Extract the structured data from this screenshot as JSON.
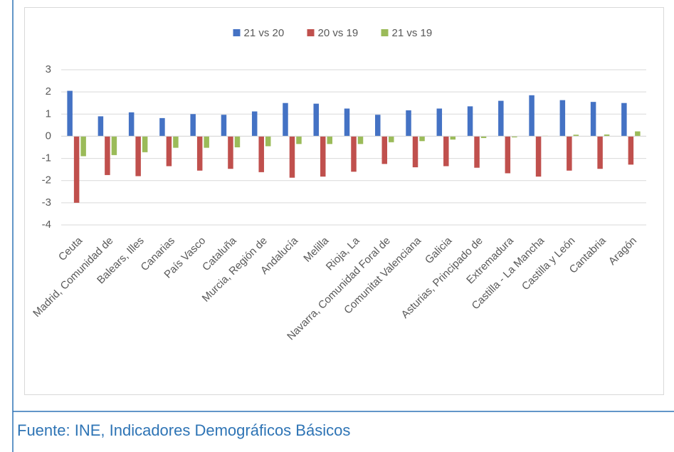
{
  "chart_data": {
    "type": "bar",
    "categories": [
      "Ceuta",
      "Madrid, Comunidad de",
      "Balears, Illes",
      "Canarias",
      "País Vasco",
      "Cataluña",
      "Murcia, Región de",
      "Andalucía",
      "Melilla",
      "Rioja, La",
      "Navarra, Comunidad Foral de",
      "Comunitat Valenciana",
      "Galicia",
      "Asturias, Principado de",
      "Extremadura",
      "Castilla - La Mancha",
      "Castilla y León",
      "Cantabria",
      "Aragón"
    ],
    "series": [
      {
        "name": "21 vs 20",
        "color": "#4472c4",
        "values": [
          2.05,
          0.9,
          1.08,
          0.82,
          1.0,
          0.97,
          1.12,
          1.5,
          1.47,
          1.25,
          0.97,
          1.17,
          1.25,
          1.35,
          1.6,
          1.85,
          1.63,
          1.55,
          1.5
        ]
      },
      {
        "name": "20 vs 19",
        "color": "#c0504d",
        "values": [
          -3.0,
          -1.75,
          -1.8,
          -1.35,
          -1.55,
          -1.47,
          -1.62,
          -1.87,
          -1.82,
          -1.6,
          -1.25,
          -1.4,
          -1.35,
          -1.42,
          -1.67,
          -1.82,
          -1.55,
          -1.47,
          -1.28
        ]
      },
      {
        "name": "21 vs 19",
        "color": "#9bbb59",
        "values": [
          -0.9,
          -0.85,
          -0.72,
          -0.52,
          -0.52,
          -0.5,
          -0.45,
          -0.35,
          -0.35,
          -0.35,
          -0.27,
          -0.22,
          -0.15,
          -0.08,
          -0.05,
          0.02,
          0.07,
          0.08,
          0.22
        ]
      }
    ],
    "ylim": [
      -4,
      3
    ],
    "yticks": [
      -4,
      -3,
      -2,
      -1,
      0,
      1,
      2,
      3
    ],
    "grid": true,
    "legend": "top"
  },
  "footer": {
    "text": "Fuente: INE, Indicadores Demográficos Básicos"
  }
}
